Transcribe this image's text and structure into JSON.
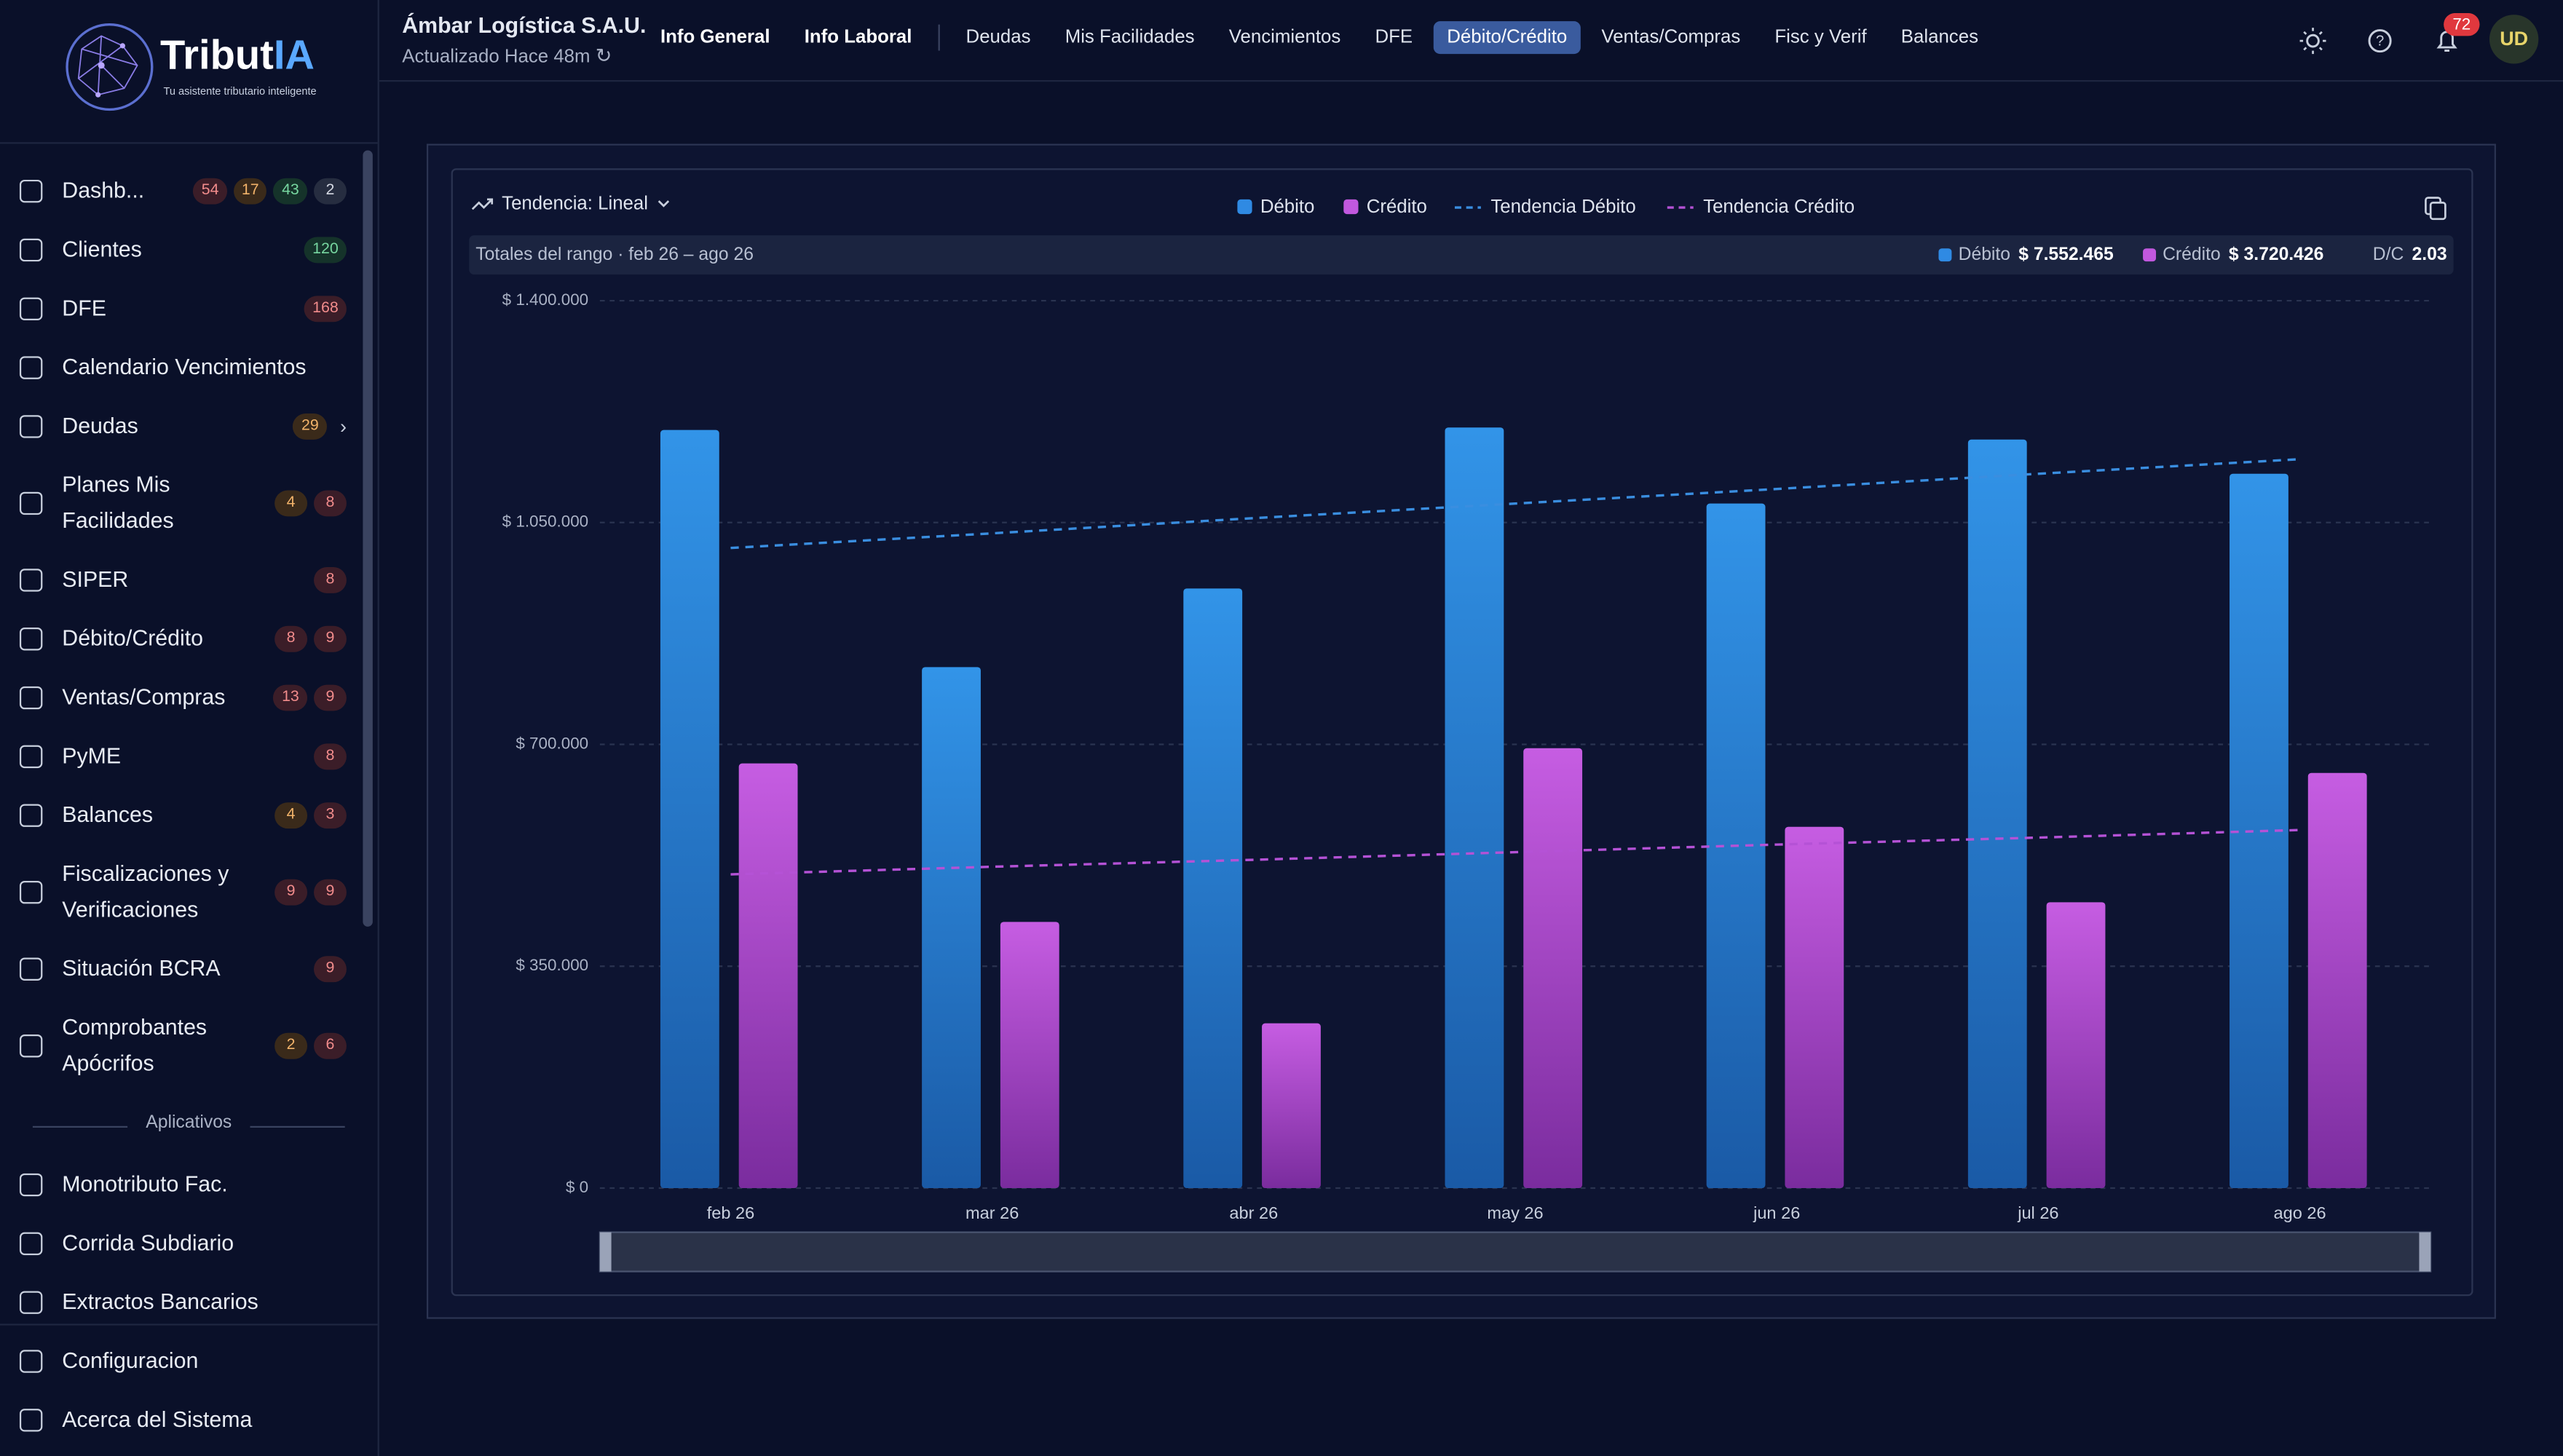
{
  "sidebar": {
    "brand": "Tribut",
    "brand_accent": "IA",
    "tagline": "Tu asistente tributario inteligente",
    "items": [
      {
        "label": "Dashb...",
        "badges": [
          {
            "text": "54",
            "tone": "red"
          },
          {
            "text": "17",
            "tone": "orange"
          },
          {
            "text": "43",
            "tone": "green"
          },
          {
            "text": "2",
            "tone": "gray"
          }
        ]
      },
      {
        "label": "Clientes",
        "badges": [
          {
            "text": "120",
            "tone": "green"
          }
        ]
      },
      {
        "label": "DFE",
        "badges": [
          {
            "text": "168",
            "tone": "red"
          }
        ]
      },
      {
        "label": "Calendario Vencimientos",
        "badges": []
      },
      {
        "label": "Deudas",
        "badges": [
          {
            "text": "29",
            "tone": "orange"
          }
        ],
        "expandable": true
      },
      {
        "label": "Planes Mis Facilidades",
        "badges": [
          {
            "text": "4",
            "tone": "orange"
          },
          {
            "text": "8",
            "tone": "red"
          }
        ]
      },
      {
        "label": "SIPER",
        "badges": [
          {
            "text": "8",
            "tone": "red"
          }
        ]
      },
      {
        "label": "Débito/Crédito",
        "badges": [
          {
            "text": "8",
            "tone": "red"
          },
          {
            "text": "9",
            "tone": "red"
          }
        ]
      },
      {
        "label": "Ventas/Compras",
        "badges": [
          {
            "text": "13",
            "tone": "red"
          },
          {
            "text": "9",
            "tone": "red"
          }
        ]
      },
      {
        "label": "PyME",
        "badges": [
          {
            "text": "8",
            "tone": "red"
          }
        ]
      },
      {
        "label": "Balances",
        "badges": [
          {
            "text": "4",
            "tone": "orange"
          },
          {
            "text": "3",
            "tone": "red"
          }
        ]
      },
      {
        "label": "Fiscalizaciones y Verificaciones",
        "badges": [
          {
            "text": "9",
            "tone": "red"
          },
          {
            "text": "9",
            "tone": "red"
          }
        ]
      },
      {
        "label": "Situación BCRA",
        "badges": [
          {
            "text": "9",
            "tone": "red"
          }
        ]
      },
      {
        "label": "Comprobantes Apócrifos",
        "badges": [
          {
            "text": "2",
            "tone": "orange"
          },
          {
            "text": "6",
            "tone": "red"
          }
        ]
      }
    ],
    "section": "Aplicativos",
    "apps": [
      "Monotributo Fac.",
      "Corrida Subdiario",
      "Extractos Bancarios"
    ],
    "footer": [
      "Configuracion",
      "Acerca del Sistema"
    ]
  },
  "header": {
    "company": "Ámbar Logística S.A.U.",
    "updated": "Actualizado Hace 48m",
    "primary_tabs": [
      "Info General",
      "Info Laboral"
    ],
    "tabs": [
      "Deudas",
      "Mis Facilidades",
      "Vencimientos",
      "DFE",
      "Débito/Crédito",
      "Ventas/Compras",
      "Fisc y Verif",
      "Balances"
    ],
    "active_tab": 4,
    "notifications": "72",
    "avatar": "UD"
  },
  "chart_data": {
    "type": "bar",
    "trend_label": "Tendencia: Lineal",
    "categories": [
      "feb 26",
      "mar 26",
      "abr 26",
      "may 26",
      "jun 26",
      "jul 26",
      "ago 26"
    ],
    "series": [
      {
        "name": "Débito",
        "color": "#2f8ae3",
        "values": [
          1196000,
          822000,
          946000,
          1200000,
          1080000,
          1181000,
          1127000
        ]
      },
      {
        "name": "Crédito",
        "color": "#c158de",
        "values": [
          670000,
          420000,
          260000,
          694000,
          570000,
          451000,
          655000
        ]
      }
    ],
    "trend_series": [
      {
        "name": "Tendencia Débito",
        "color": "#3a8ee0",
        "values": [
          1010000,
          1033000,
          1057000,
          1080000,
          1103000,
          1127000,
          1150000
        ]
      },
      {
        "name": "Tendencia Crédito",
        "color": "#b552d6",
        "values": [
          495000,
          507000,
          518000,
          530000,
          542000,
          553000,
          565000
        ]
      }
    ],
    "totals": {
      "label": "Totales del rango · feb 26 – ago 26",
      "debit": "$ 7.552.465",
      "credit": "$ 3.720.426",
      "ratio_label": "D/C",
      "ratio": "2.03"
    },
    "ylim": [
      0,
      1400000
    ],
    "yticks": [
      {
        "value": 0,
        "label": "$ 0"
      },
      {
        "value": 350000,
        "label": "$ 350.000"
      },
      {
        "value": 700000,
        "label": "$ 700.000"
      },
      {
        "value": 1050000,
        "label": "$ 1.050.000"
      },
      {
        "value": 1400000,
        "label": "$ 1.400.000"
      }
    ],
    "grid": true
  }
}
